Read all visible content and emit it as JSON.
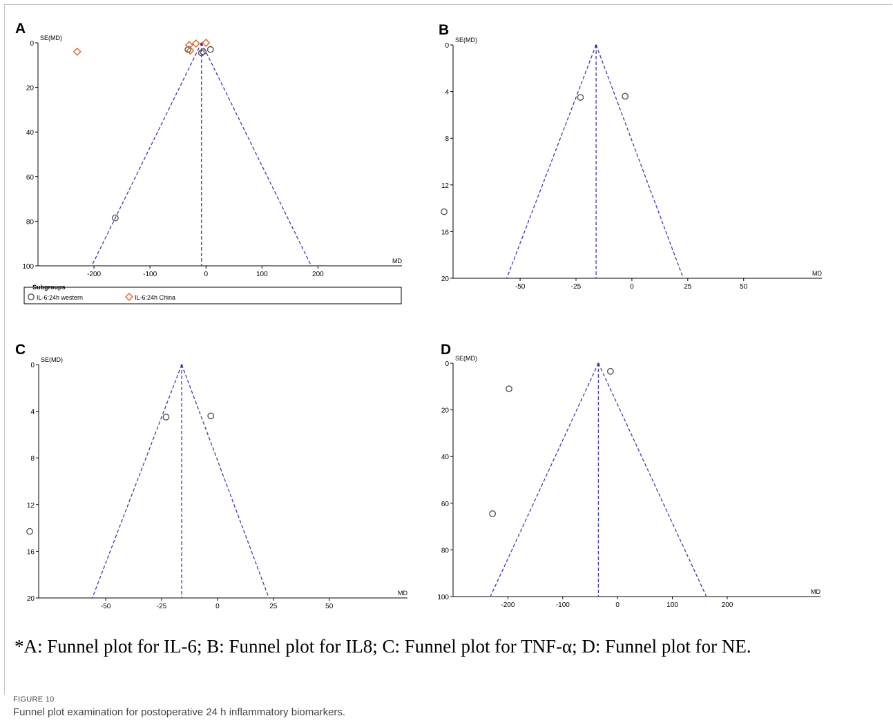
{
  "chart_data": [
    {
      "type": "scatter",
      "panel": "A",
      "ylabel": "SE(MD)",
      "xlabel": "MD",
      "xlim": [
        -300,
        350
      ],
      "ylim": [
        0,
        100
      ],
      "y_reversed": true,
      "xticks": [
        -200,
        -100,
        0,
        100,
        200
      ],
      "yticks": [
        0,
        20,
        40,
        60,
        80,
        100
      ],
      "pooled_md": -8,
      "funnel_base": [
        -204,
        188
      ],
      "legend_title": "Subgroups",
      "series": [
        {
          "name": "IL-6:24h western",
          "marker": "circle",
          "color": "#555555",
          "points": [
            [
              -162,
              78.5
            ],
            [
              -32,
              3
            ],
            [
              -8,
              4.5
            ],
            [
              -5,
              4
            ],
            [
              8,
              3
            ]
          ]
        },
        {
          "name": "IL-6:24h China",
          "marker": "diamond",
          "color": "#e0622a",
          "points": [
            [
              -230,
              4
            ],
            [
              -30,
              1
            ],
            [
              -28,
              3.5
            ],
            [
              -18,
              0.3
            ],
            [
              0,
              0
            ]
          ]
        }
      ]
    },
    {
      "type": "scatter",
      "panel": "B",
      "ylabel": "SE(MD)",
      "xlabel": "MD",
      "xlim": [
        -80,
        85
      ],
      "ylim": [
        0,
        20
      ],
      "y_reversed": true,
      "xticks": [
        -50,
        -25,
        0,
        25,
        50
      ],
      "yticks": [
        0,
        4,
        8,
        12,
        16,
        20
      ],
      "pooled_md": -16,
      "funnel_base": [
        -56,
        23
      ],
      "series": [
        {
          "marker": "circle",
          "color": "#555555",
          "points": [
            [
              -23,
              4.5
            ],
            [
              -3,
              4.4
            ],
            [
              -84,
              14.3
            ]
          ]
        }
      ]
    },
    {
      "type": "scatter",
      "panel": "C",
      "ylabel": "SE(MD)",
      "xlabel": "MD",
      "xlim": [
        -80,
        85
      ],
      "ylim": [
        0,
        20
      ],
      "y_reversed": true,
      "xticks": [
        -50,
        -25,
        0,
        25,
        50
      ],
      "yticks": [
        0,
        4,
        8,
        12,
        16,
        20
      ],
      "pooled_md": -16,
      "funnel_base": [
        -56,
        23
      ],
      "series": [
        {
          "marker": "circle",
          "color": "#555555",
          "points": [
            [
              -23,
              4.5
            ],
            [
              -3,
              4.4
            ],
            [
              -84,
              14.3
            ]
          ]
        }
      ]
    },
    {
      "type": "scatter",
      "panel": "D",
      "ylabel": "SE(MD)",
      "xlabel": "MD",
      "xlim": [
        -300,
        370
      ],
      "ylim": [
        0,
        100
      ],
      "y_reversed": true,
      "xticks": [
        -200,
        -100,
        0,
        100,
        200
      ],
      "yticks": [
        0,
        20,
        40,
        60,
        80,
        100
      ],
      "pooled_md": -35,
      "funnel_base": [
        -232,
        162
      ],
      "series": [
        {
          "marker": "circle",
          "color": "#555555",
          "points": [
            [
              -13,
              3.5
            ],
            [
              -198,
              11
            ],
            [
              -228,
              64.5
            ]
          ]
        }
      ]
    }
  ],
  "caption_line": "*A: Funnel plot for IL-6; B: Funnel plot for IL8; C: Funnel plot for TNF-α; D: Funnel plot for NE.",
  "figure_label": "FIGURE 10",
  "figure_caption": "Funnel plot examination for postoperative 24 h inflammatory biomarkers."
}
